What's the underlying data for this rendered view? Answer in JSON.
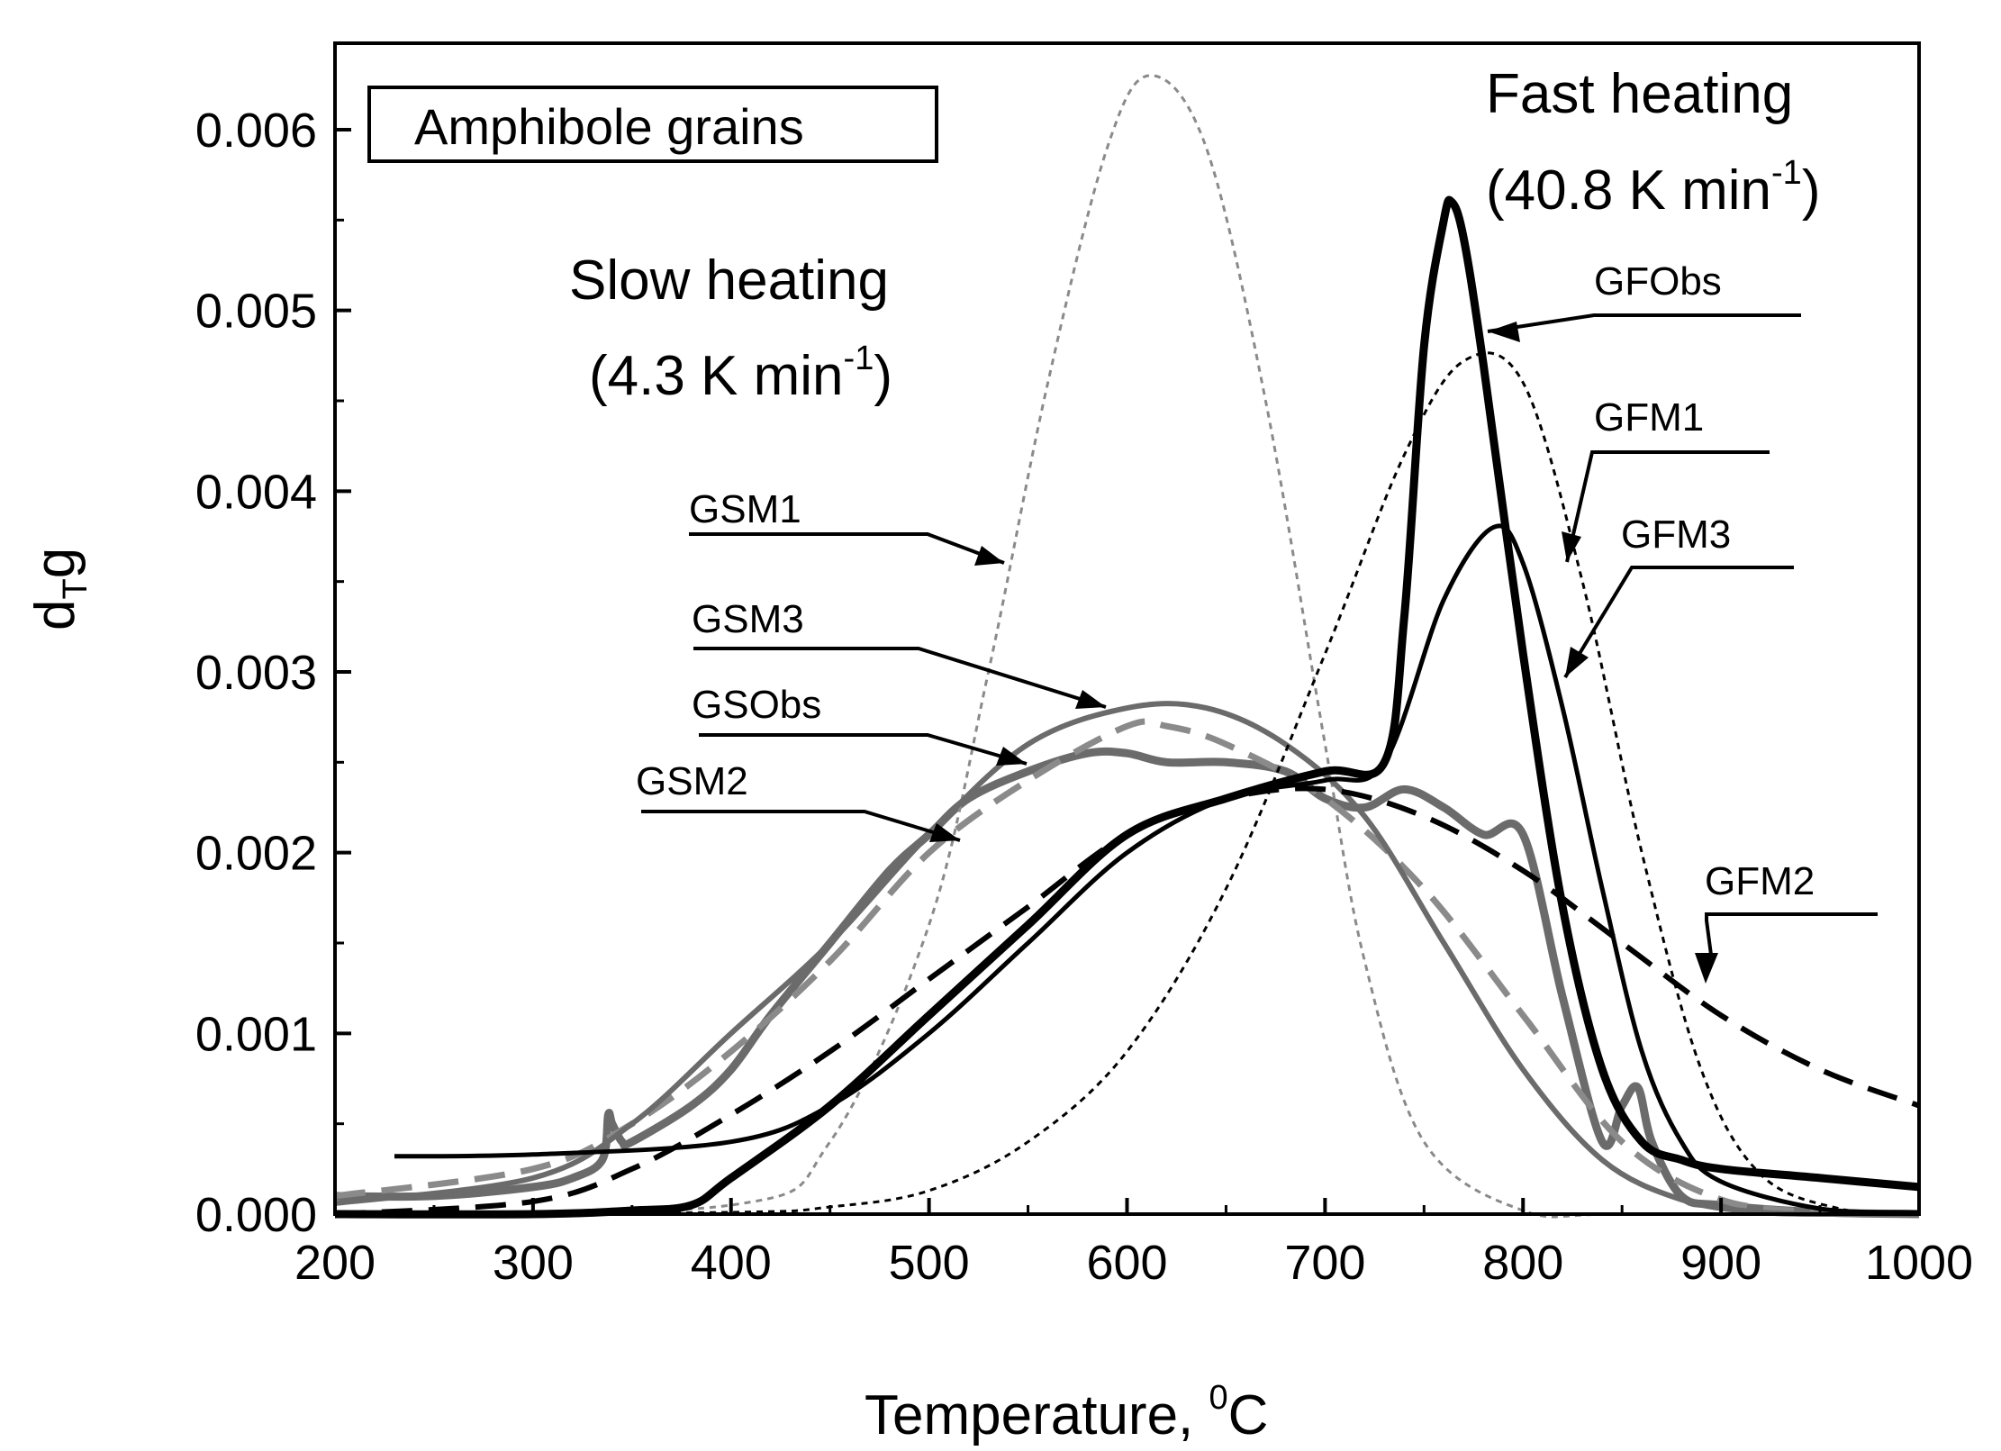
{
  "chart_data": {
    "type": "line",
    "xlabel": "Temperature, ",
    "xlabel_sup": "0",
    "xlabel_unit": "C",
    "ylabel_main": "d",
    "ylabel_sub": "T",
    "ylabel_end": "g",
    "legend_box_text": "Amphibole grains",
    "xlim": [
      200,
      1000
    ],
    "ylim": [
      0,
      0.0065
    ],
    "x_ticks": [
      "200",
      "300",
      "400",
      "500",
      "600",
      "700",
      "800",
      "900",
      "1000"
    ],
    "y_ticks": [
      "0.000",
      "0.001",
      "0.002",
      "0.003",
      "0.004",
      "0.005",
      "0.006"
    ],
    "annotations": {
      "slow_line1": "Slow heating",
      "slow_line2_pre": "(4.3 K min",
      "slow_line2_sup": "-1",
      "slow_line2_post": ")",
      "fast_line1": "Fast heating",
      "fast_line2_pre": "(40.8 K min",
      "fast_line2_sup": "-1",
      "fast_line2_post": ")"
    },
    "colors": {
      "black": "#000000",
      "gray": "#6b6b6b",
      "light_gray": "#8a8a8a"
    },
    "series": [
      {
        "name": "GSObs",
        "style": "gray-thick-noisy",
        "x": [
          200,
          250,
          300,
          320,
          335,
          338,
          340,
          345,
          350,
          380,
          400,
          420,
          450,
          480,
          500,
          520,
          550,
          580,
          600,
          620,
          650,
          680,
          700,
          720,
          740,
          760,
          780,
          800,
          820,
          840,
          850,
          858,
          865,
          880,
          900,
          950,
          1000
        ],
        "y": [
          0.0001,
          0.0001,
          0.00015,
          0.0002,
          0.0003,
          0.00055,
          0.0005,
          0.0004,
          0.0004,
          0.0006,
          0.0008,
          0.0011,
          0.0015,
          0.0019,
          0.0021,
          0.0023,
          0.00245,
          0.00255,
          0.00255,
          0.0025,
          0.0025,
          0.00245,
          0.0023,
          0.00225,
          0.00235,
          0.00225,
          0.0021,
          0.0021,
          0.0012,
          0.0004,
          0.0006,
          0.0007,
          0.0004,
          0.0001,
          5e-05,
          1e-05,
          0.0
        ]
      },
      {
        "name": "GSM1",
        "style": "gray-dotted",
        "x": [
          200,
          400,
          450,
          500,
          530,
          560,
          590,
          612,
          640,
          670,
          700,
          720,
          750,
          800,
          850,
          1000
        ],
        "y": [
          0,
          5e-05,
          0.0004,
          0.0016,
          0.003,
          0.0046,
          0.0059,
          0.0063,
          0.0059,
          0.0045,
          0.0026,
          0.0014,
          0.0004,
          2e-05,
          0,
          0
        ]
      },
      {
        "name": "GSM2",
        "style": "gray-dashed",
        "x": [
          200,
          300,
          350,
          400,
          450,
          500,
          550,
          600,
          620,
          650,
          700,
          750,
          800,
          850,
          900,
          950
        ],
        "y": [
          0.0001,
          0.00025,
          0.0005,
          0.0009,
          0.0014,
          0.002,
          0.0024,
          0.0027,
          0.0027,
          0.0026,
          0.0023,
          0.0018,
          0.0011,
          0.0004,
          8e-05,
          1e-05
        ]
      },
      {
        "name": "GSM3",
        "style": "gray-solid",
        "x": [
          200,
          300,
          350,
          400,
          450,
          500,
          550,
          600,
          640,
          680,
          720,
          760,
          800,
          840,
          880,
          920,
          960
        ],
        "y": [
          6e-05,
          0.0002,
          0.0005,
          0.001,
          0.0015,
          0.0021,
          0.0026,
          0.0028,
          0.0028,
          0.0026,
          0.0022,
          0.0015,
          0.0008,
          0.0003,
          8e-05,
          1e-05,
          0
        ]
      },
      {
        "name": "GFObs",
        "style": "black-thick",
        "x": [
          200,
          300,
          350,
          380,
          400,
          450,
          500,
          550,
          600,
          650,
          700,
          730,
          740,
          750,
          760,
          764,
          770,
          780,
          800,
          820,
          840,
          860,
          880,
          900,
          950,
          1000
        ],
        "y": [
          0,
          0,
          2e-05,
          5e-05,
          0.0002,
          0.0006,
          0.0011,
          0.0016,
          0.0021,
          0.0023,
          0.00245,
          0.0025,
          0.0033,
          0.0048,
          0.0055,
          0.0056,
          0.0054,
          0.0047,
          0.0031,
          0.0017,
          0.0008,
          0.0004,
          0.0003,
          0.00025,
          0.0002,
          0.00015
        ]
      },
      {
        "name": "GFM1",
        "style": "black-dotted",
        "x": [
          200,
          400,
          450,
          500,
          550,
          600,
          650,
          700,
          740,
          770,
          800,
          830,
          860,
          890,
          920,
          960,
          1000
        ],
        "y": [
          0,
          1e-05,
          4e-05,
          0.00013,
          0.0004,
          0.0009,
          0.0018,
          0.0031,
          0.0042,
          0.00472,
          0.0046,
          0.0035,
          0.002,
          0.0008,
          0.00022,
          3e-05,
          0
        ]
      },
      {
        "name": "GFM2",
        "style": "black-dashed",
        "x": [
          200,
          300,
          350,
          400,
          450,
          500,
          550,
          600,
          650,
          700,
          750,
          800,
          850,
          900,
          950,
          1000
        ],
        "y": [
          0,
          7e-05,
          0.00025,
          0.00055,
          0.0009,
          0.0013,
          0.0017,
          0.0021,
          0.0023,
          0.00235,
          0.0022,
          0.0019,
          0.0015,
          0.0011,
          0.0008,
          0.0006
        ]
      },
      {
        "name": "GFM3",
        "style": "black-solid",
        "x": [
          230,
          300,
          400,
          450,
          500,
          550,
          600,
          650,
          700,
          730,
          760,
          785,
          800,
          820,
          840,
          860,
          880,
          900,
          950,
          1000
        ],
        "y": [
          0.00032,
          0.00033,
          0.0004,
          0.0006,
          0.001,
          0.0015,
          0.002,
          0.0023,
          0.0024,
          0.0025,
          0.0034,
          0.0038,
          0.0036,
          0.0028,
          0.0018,
          0.0009,
          0.0004,
          0.00018,
          3e-05,
          1e-05
        ]
      }
    ]
  }
}
